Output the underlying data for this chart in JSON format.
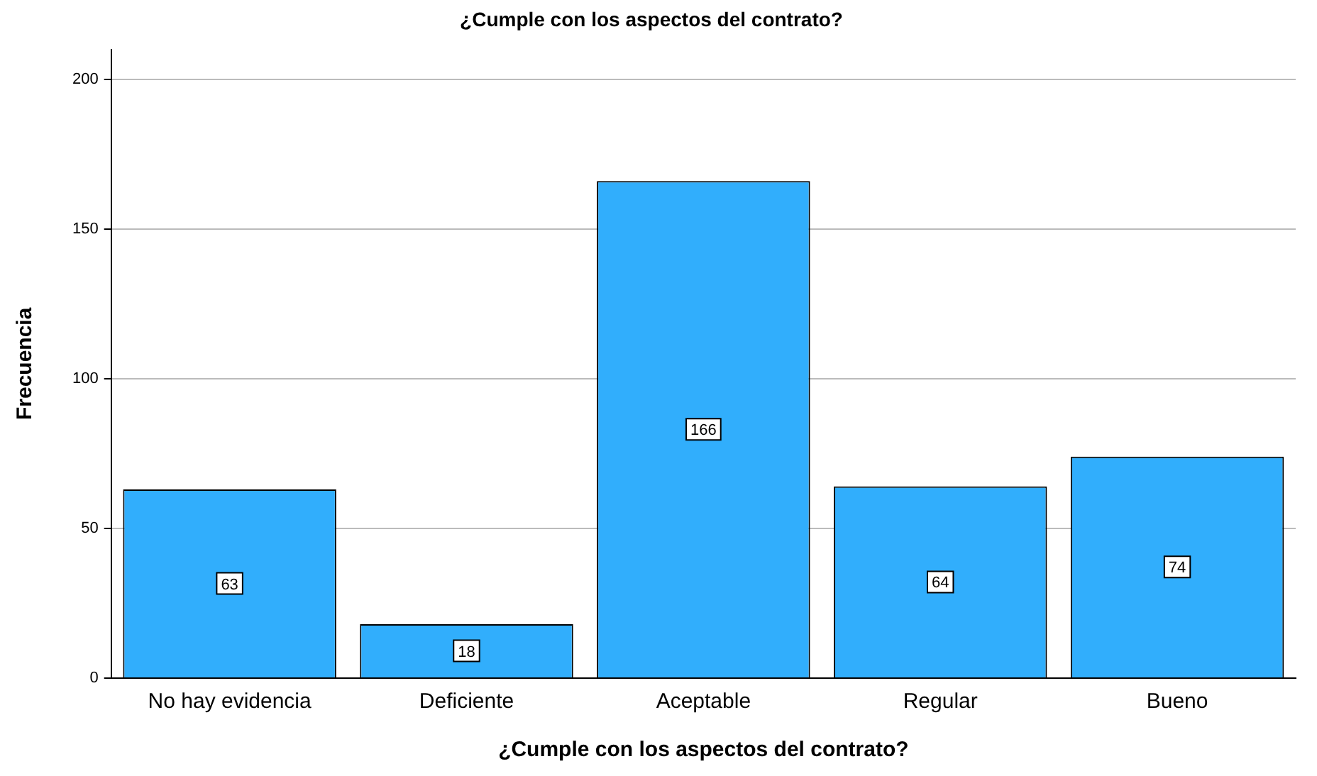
{
  "chart_data": {
    "type": "bar",
    "title": "¿Cumple con los aspectos del contrato?",
    "xlabel": "¿Cumple con los aspectos del contrato?",
    "ylabel": "Frecuencia",
    "categories": [
      "No hay evidencia",
      "Deficiente",
      "Aceptable",
      "Regular",
      "Bueno"
    ],
    "values": [
      63,
      18,
      166,
      64,
      74
    ],
    "color": "#31aefc",
    "ylim": [
      0,
      210
    ],
    "yticks": [
      0,
      50,
      100,
      150,
      200
    ],
    "grid": "y",
    "data_labels": true,
    "legend": false
  }
}
